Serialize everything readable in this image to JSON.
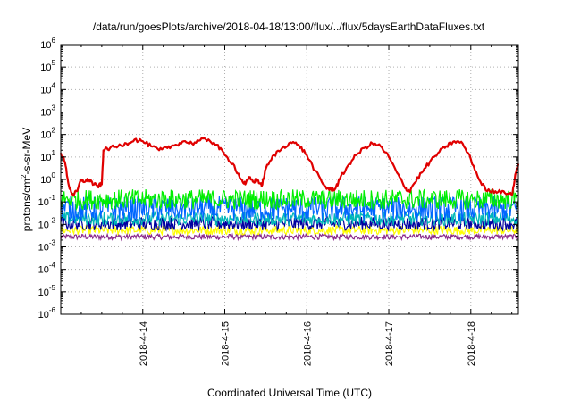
{
  "chart_data": {
    "type": "line",
    "title": "/data/run/goesPlots/archive/2018-04-18/13:00/flux/../flux/5daysEarthDataFluxes.txt",
    "xlabel": "Coordinated Universal Time (UTC)",
    "ylabel": "protons/cm2-s-sr-MeV",
    "ylabel_parts": {
      "pre": "protons/cm",
      "sup": "2",
      "post": "-s-sr-MeV"
    },
    "yscale": "log",
    "ylim_exponents": [
      -6,
      6
    ],
    "ytick_exponents": [
      -6,
      -5,
      -4,
      -3,
      -2,
      -1,
      0,
      1,
      2,
      3,
      4,
      5,
      6
    ],
    "ytick_base": "10",
    "xlim": [
      13.0,
      18.58
    ],
    "xticks": [
      {
        "x": 14,
        "label": "2018-4-14"
      },
      {
        "x": 15,
        "label": "2018-4-15"
      },
      {
        "x": 16,
        "label": "2018-4-16"
      },
      {
        "x": 17,
        "label": "2018-4-17"
      },
      {
        "x": 18,
        "label": "2018-4-18"
      }
    ],
    "grid": true,
    "series": [
      {
        "color": "#e00000",
        "x": [
          13.0,
          13.05,
          13.1,
          13.15,
          13.2,
          13.25,
          13.3,
          13.35,
          13.4,
          13.45,
          13.5,
          13.52,
          13.6,
          13.7,
          13.8,
          13.9,
          14.0,
          14.1,
          14.2,
          14.3,
          14.4,
          14.5,
          14.6,
          14.7,
          14.8,
          14.9,
          15.0,
          15.1,
          15.2,
          15.25,
          15.3,
          15.35,
          15.4,
          15.45,
          15.5,
          15.6,
          15.7,
          15.8,
          15.9,
          16.0,
          16.1,
          16.2,
          16.25,
          16.3,
          16.35,
          16.4,
          16.5,
          16.6,
          16.7,
          16.8,
          16.9,
          17.0,
          17.1,
          17.2,
          17.25,
          17.3,
          17.4,
          17.5,
          17.6,
          17.7,
          17.8,
          17.9,
          18.0,
          18.1,
          18.2,
          18.3,
          18.4,
          18.5,
          18.55,
          18.58
        ],
        "y": [
          15,
          6,
          0.5,
          0.2,
          0.3,
          1.0,
          0.8,
          1.0,
          0.6,
          0.5,
          0.6,
          20,
          25,
          30,
          40,
          60,
          50,
          30,
          20,
          25,
          35,
          50,
          40,
          55,
          60,
          35,
          12,
          5,
          1.0,
          0.6,
          1.2,
          0.8,
          1.0,
          0.5,
          3,
          12,
          25,
          45,
          35,
          12,
          2.5,
          0.6,
          0.4,
          0.35,
          0.4,
          1.0,
          4,
          12,
          25,
          40,
          30,
          10,
          2.0,
          0.4,
          0.3,
          0.6,
          2,
          6,
          15,
          30,
          50,
          40,
          8,
          1.0,
          0.3,
          0.3,
          0.3,
          0.2,
          2,
          5
        ]
      },
      {
        "color": "#00ee00",
        "base": 0.13,
        "spread": 0.45
      },
      {
        "color": "#0066ff",
        "base": 0.05,
        "spread": 0.55
      },
      {
        "color": "#00b8b8",
        "base": 0.018,
        "spread": 0.3
      },
      {
        "color": "#0000a0",
        "base": 0.011,
        "spread": 0.3
      },
      {
        "color": "#ffff00",
        "base": 0.0055,
        "spread": 0.2
      },
      {
        "color": "#8b2a8b",
        "base": 0.0028,
        "spread": 0.12
      }
    ]
  }
}
